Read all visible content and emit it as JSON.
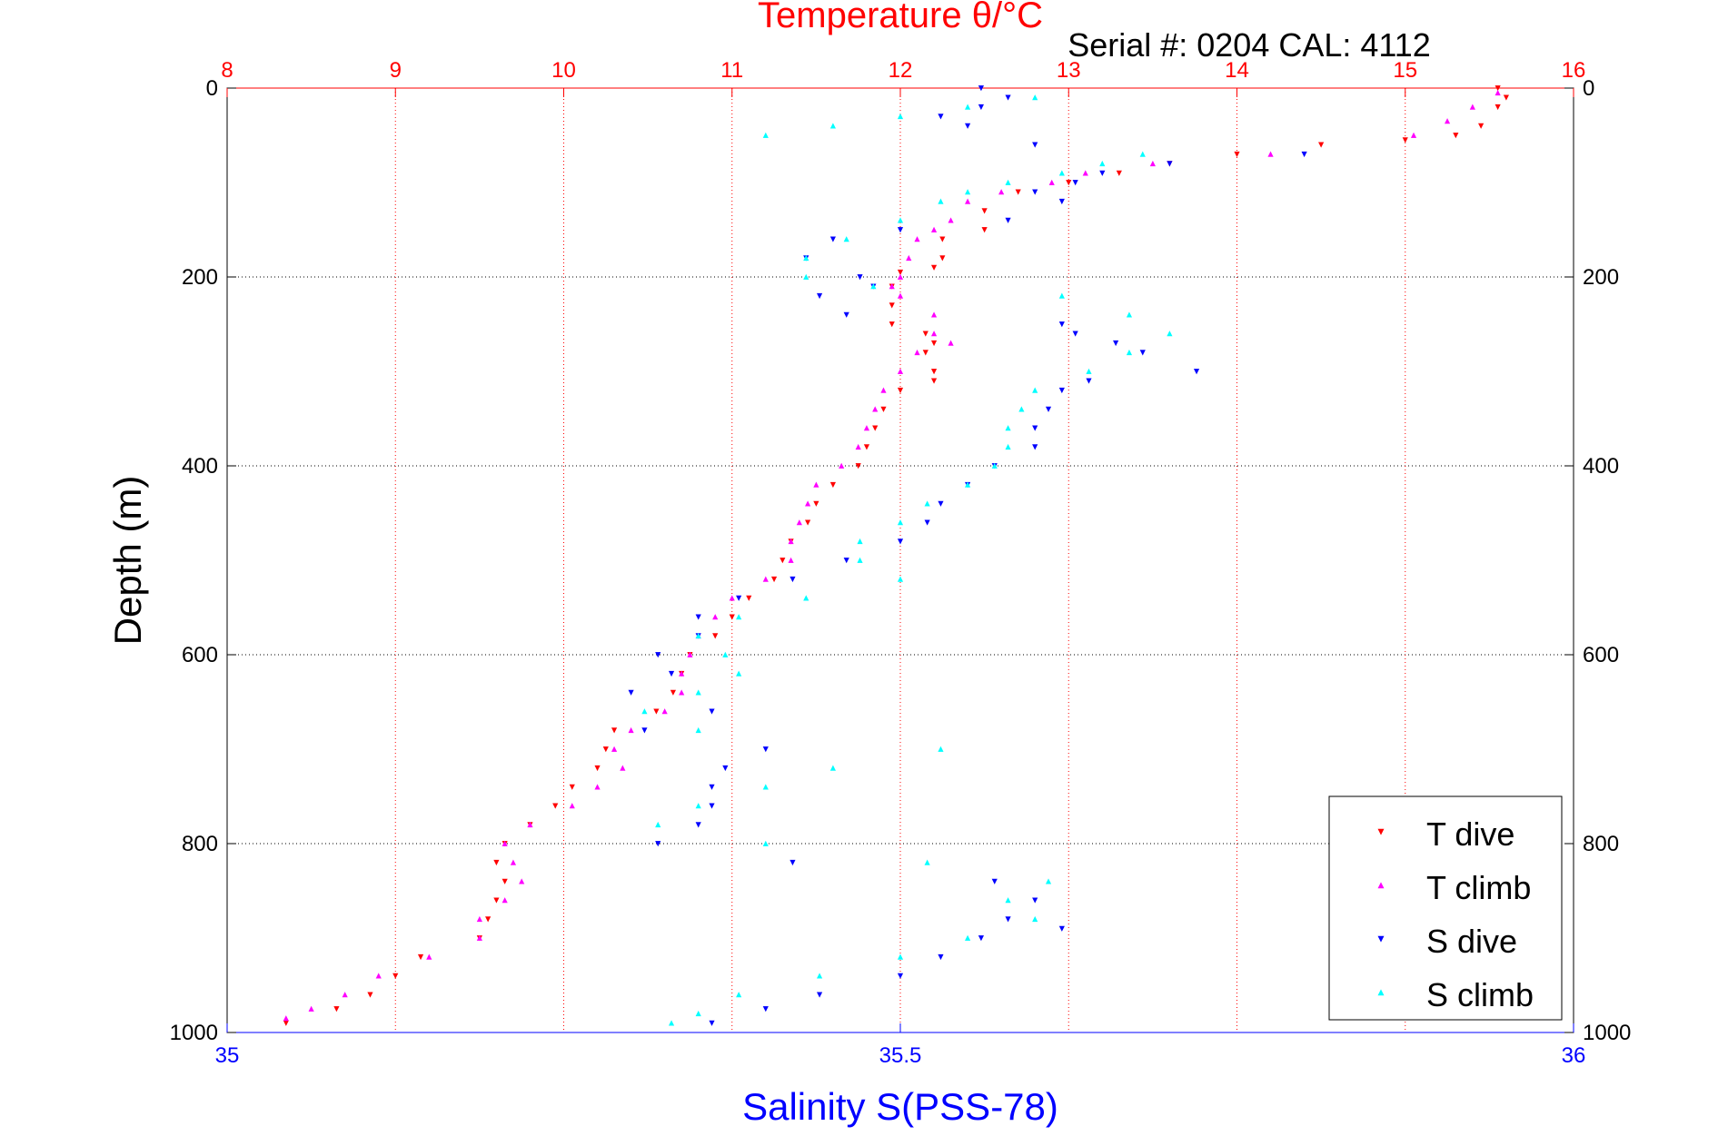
{
  "chart_data": {
    "type": "scatter",
    "title": "Temperature θ/°C",
    "subtitle": "Serial #: 0204  CAL: 4112",
    "ylabel": "Depth (m)",
    "xlabel": "Salinity S(PSS-78)",
    "ylim": [
      1000,
      0
    ],
    "yticks": [
      0,
      200,
      400,
      600,
      800,
      1000
    ],
    "temperature_axis": {
      "lim": [
        8,
        16
      ],
      "ticks": [
        8,
        9,
        10,
        11,
        12,
        13,
        14,
        15,
        16
      ]
    },
    "salinity_axis": {
      "lim": [
        35,
        36
      ],
      "ticks": [
        "35",
        "35.5",
        "36"
      ]
    },
    "grid": true,
    "legend_position": "bottom-right",
    "series": [
      {
        "name": "T dive",
        "axis": "temperature",
        "marker": "triangle-down",
        "color": "#ff0000",
        "points": [
          [
            15.55,
            0
          ],
          [
            15.6,
            10
          ],
          [
            15.55,
            20
          ],
          [
            15.45,
            40
          ],
          [
            15.3,
            50
          ],
          [
            15.0,
            55
          ],
          [
            14.5,
            60
          ],
          [
            14.0,
            70
          ],
          [
            13.6,
            80
          ],
          [
            13.3,
            90
          ],
          [
            13.0,
            100
          ],
          [
            12.7,
            110
          ],
          [
            12.5,
            130
          ],
          [
            12.5,
            150
          ],
          [
            12.25,
            160
          ],
          [
            12.25,
            180
          ],
          [
            12.2,
            190
          ],
          [
            12.0,
            195
          ],
          [
            11.95,
            210
          ],
          [
            11.95,
            230
          ],
          [
            11.95,
            250
          ],
          [
            12.15,
            260
          ],
          [
            12.2,
            270
          ],
          [
            12.15,
            280
          ],
          [
            12.2,
            300
          ],
          [
            12.2,
            310
          ],
          [
            12.0,
            320
          ],
          [
            11.9,
            340
          ],
          [
            11.85,
            360
          ],
          [
            11.8,
            380
          ],
          [
            11.75,
            400
          ],
          [
            11.6,
            420
          ],
          [
            11.5,
            440
          ],
          [
            11.45,
            460
          ],
          [
            11.35,
            480
          ],
          [
            11.3,
            500
          ],
          [
            11.25,
            520
          ],
          [
            11.1,
            540
          ],
          [
            11.0,
            560
          ],
          [
            10.9,
            580
          ],
          [
            10.75,
            600
          ],
          [
            10.7,
            620
          ],
          [
            10.65,
            640
          ],
          [
            10.55,
            660
          ],
          [
            10.3,
            680
          ],
          [
            10.25,
            700
          ],
          [
            10.2,
            720
          ],
          [
            10.05,
            740
          ],
          [
            9.95,
            760
          ],
          [
            9.8,
            780
          ],
          [
            9.65,
            800
          ],
          [
            9.6,
            820
          ],
          [
            9.65,
            840
          ],
          [
            9.6,
            860
          ],
          [
            9.55,
            880
          ],
          [
            9.5,
            900
          ],
          [
            9.15,
            920
          ],
          [
            9.0,
            940
          ],
          [
            8.85,
            960
          ],
          [
            8.65,
            975
          ],
          [
            8.35,
            990
          ]
        ]
      },
      {
        "name": "T climb",
        "axis": "temperature",
        "marker": "triangle-up",
        "color": "#ff00ff",
        "points": [
          [
            15.55,
            5
          ],
          [
            15.4,
            20
          ],
          [
            15.25,
            35
          ],
          [
            15.05,
            50
          ],
          [
            14.2,
            70
          ],
          [
            13.5,
            80
          ],
          [
            13.1,
            90
          ],
          [
            12.9,
            100
          ],
          [
            12.6,
            110
          ],
          [
            12.4,
            120
          ],
          [
            12.3,
            140
          ],
          [
            12.2,
            150
          ],
          [
            12.1,
            160
          ],
          [
            12.05,
            180
          ],
          [
            12.0,
            200
          ],
          [
            11.95,
            210
          ],
          [
            12.0,
            220
          ],
          [
            12.2,
            240
          ],
          [
            12.2,
            260
          ],
          [
            12.3,
            270
          ],
          [
            12.1,
            280
          ],
          [
            12.0,
            300
          ],
          [
            11.9,
            320
          ],
          [
            11.85,
            340
          ],
          [
            11.8,
            360
          ],
          [
            11.75,
            380
          ],
          [
            11.65,
            400
          ],
          [
            11.5,
            420
          ],
          [
            11.45,
            440
          ],
          [
            11.4,
            460
          ],
          [
            11.35,
            480
          ],
          [
            11.35,
            500
          ],
          [
            11.2,
            520
          ],
          [
            11.0,
            540
          ],
          [
            10.9,
            560
          ],
          [
            10.8,
            580
          ],
          [
            10.75,
            600
          ],
          [
            10.7,
            620
          ],
          [
            10.7,
            640
          ],
          [
            10.6,
            660
          ],
          [
            10.4,
            680
          ],
          [
            10.3,
            700
          ],
          [
            10.35,
            720
          ],
          [
            10.2,
            740
          ],
          [
            10.05,
            760
          ],
          [
            9.8,
            780
          ],
          [
            9.65,
            800
          ],
          [
            9.7,
            820
          ],
          [
            9.75,
            840
          ],
          [
            9.65,
            860
          ],
          [
            9.5,
            880
          ],
          [
            9.5,
            900
          ],
          [
            9.2,
            920
          ],
          [
            8.9,
            940
          ],
          [
            8.7,
            960
          ],
          [
            8.5,
            975
          ],
          [
            8.35,
            985
          ]
        ]
      },
      {
        "name": "S dive",
        "axis": "salinity",
        "marker": "triangle-down",
        "color": "#0000ff",
        "points": [
          [
            35.56,
            0
          ],
          [
            35.58,
            10
          ],
          [
            35.56,
            20
          ],
          [
            35.53,
            30
          ],
          [
            35.55,
            40
          ],
          [
            35.6,
            60
          ],
          [
            35.8,
            70
          ],
          [
            35.7,
            80
          ],
          [
            35.65,
            90
          ],
          [
            35.63,
            100
          ],
          [
            35.6,
            110
          ],
          [
            35.62,
            120
          ],
          [
            35.58,
            140
          ],
          [
            35.5,
            150
          ],
          [
            35.45,
            160
          ],
          [
            35.43,
            180
          ],
          [
            35.47,
            200
          ],
          [
            35.48,
            210
          ],
          [
            35.44,
            220
          ],
          [
            35.46,
            240
          ],
          [
            35.62,
            250
          ],
          [
            35.63,
            260
          ],
          [
            35.66,
            270
          ],
          [
            35.68,
            280
          ],
          [
            35.72,
            300
          ],
          [
            35.64,
            310
          ],
          [
            35.62,
            320
          ],
          [
            35.61,
            340
          ],
          [
            35.6,
            360
          ],
          [
            35.6,
            380
          ],
          [
            35.57,
            400
          ],
          [
            35.55,
            420
          ],
          [
            35.53,
            440
          ],
          [
            35.52,
            460
          ],
          [
            35.5,
            480
          ],
          [
            35.46,
            500
          ],
          [
            35.42,
            520
          ],
          [
            35.38,
            540
          ],
          [
            35.35,
            560
          ],
          [
            35.35,
            580
          ],
          [
            35.32,
            600
          ],
          [
            35.33,
            620
          ],
          [
            35.3,
            640
          ],
          [
            35.36,
            660
          ],
          [
            35.31,
            680
          ],
          [
            35.4,
            700
          ],
          [
            35.37,
            720
          ],
          [
            35.36,
            740
          ],
          [
            35.36,
            760
          ],
          [
            35.35,
            780
          ],
          [
            35.32,
            800
          ],
          [
            35.42,
            820
          ],
          [
            35.57,
            840
          ],
          [
            35.6,
            860
          ],
          [
            35.58,
            880
          ],
          [
            35.62,
            890
          ],
          [
            35.56,
            900
          ],
          [
            35.53,
            920
          ],
          [
            35.5,
            940
          ],
          [
            35.44,
            960
          ],
          [
            35.4,
            975
          ],
          [
            35.36,
            990
          ]
        ]
      },
      {
        "name": "S climb",
        "axis": "salinity",
        "marker": "triangle-up",
        "color": "#00ffff",
        "points": [
          [
            35.4,
            50
          ],
          [
            35.45,
            40
          ],
          [
            35.5,
            30
          ],
          [
            35.55,
            20
          ],
          [
            35.6,
            10
          ],
          [
            35.68,
            70
          ],
          [
            35.65,
            80
          ],
          [
            35.62,
            90
          ],
          [
            35.58,
            100
          ],
          [
            35.55,
            110
          ],
          [
            35.53,
            120
          ],
          [
            35.5,
            140
          ],
          [
            35.46,
            160
          ],
          [
            35.43,
            180
          ],
          [
            35.43,
            200
          ],
          [
            35.48,
            210
          ],
          [
            35.62,
            220
          ],
          [
            35.67,
            240
          ],
          [
            35.7,
            260
          ],
          [
            35.67,
            280
          ],
          [
            35.64,
            300
          ],
          [
            35.6,
            320
          ],
          [
            35.59,
            340
          ],
          [
            35.58,
            360
          ],
          [
            35.58,
            380
          ],
          [
            35.57,
            400
          ],
          [
            35.55,
            420
          ],
          [
            35.52,
            440
          ],
          [
            35.5,
            460
          ],
          [
            35.47,
            480
          ],
          [
            35.47,
            500
          ],
          [
            35.5,
            520
          ],
          [
            35.43,
            540
          ],
          [
            35.38,
            560
          ],
          [
            35.35,
            580
          ],
          [
            35.37,
            600
          ],
          [
            35.38,
            620
          ],
          [
            35.35,
            640
          ],
          [
            35.31,
            660
          ],
          [
            35.35,
            680
          ],
          [
            35.53,
            700
          ],
          [
            35.45,
            720
          ],
          [
            35.4,
            740
          ],
          [
            35.35,
            760
          ],
          [
            35.32,
            780
          ],
          [
            35.4,
            800
          ],
          [
            35.52,
            820
          ],
          [
            35.61,
            840
          ],
          [
            35.58,
            860
          ],
          [
            35.6,
            880
          ],
          [
            35.55,
            900
          ],
          [
            35.5,
            920
          ],
          [
            35.44,
            940
          ],
          [
            35.38,
            960
          ],
          [
            35.35,
            980
          ],
          [
            35.33,
            990
          ]
        ]
      }
    ]
  }
}
